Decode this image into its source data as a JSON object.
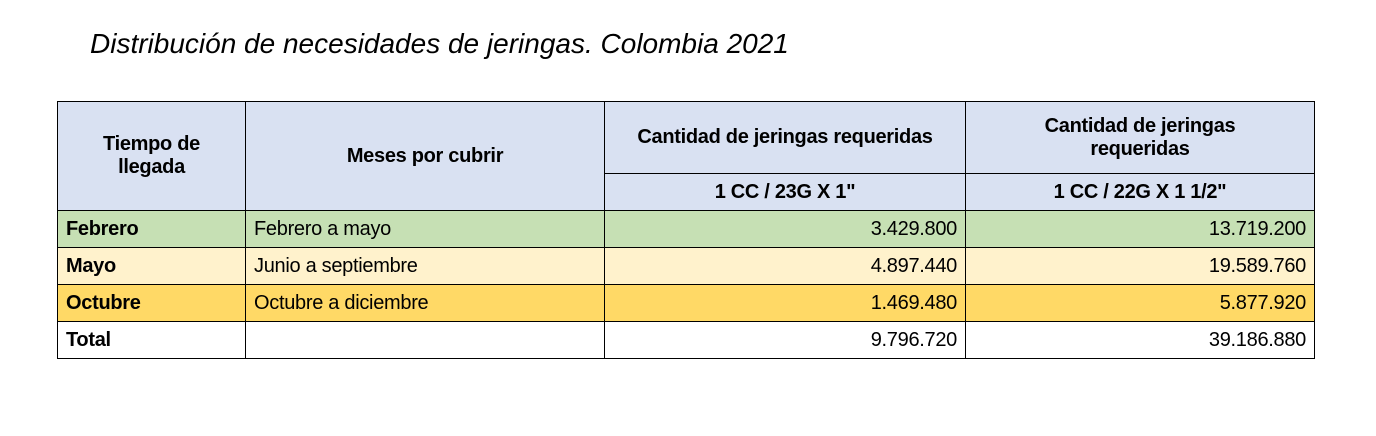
{
  "title": "Distribución de necesidades de jeringas. Colombia 2021",
  "table": {
    "header": {
      "arrival": "Tiempo de llegada",
      "months": "Meses por cubrir",
      "qty_a": "Cantidad de jeringas requeridas",
      "qty_b": "Cantidad de jeringas requeridas",
      "spec_a": "1 CC / 23G X 1\"",
      "spec_b": "1 CC / 22G X 1 1/2\""
    },
    "rows": [
      [
        "Febrero",
        "Febrero a mayo",
        "3.429.800",
        "13.719.200"
      ],
      [
        "Mayo",
        "Junio a septiembre",
        "4.897.440",
        "19.589.760"
      ],
      [
        "Octubre",
        "Octubre a diciembre",
        "1.469.480",
        "5.877.920"
      ]
    ],
    "total": {
      "label": "Total",
      "values": [
        "9.796.720",
        "39.186.880"
      ]
    }
  }
}
